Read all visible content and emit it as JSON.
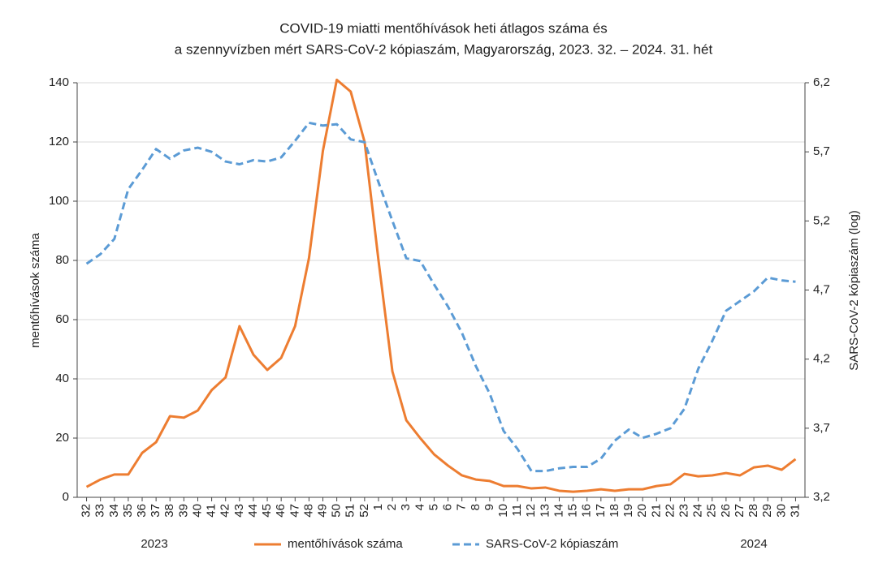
{
  "chart_data": {
    "type": "line",
    "title": [
      "COVID-19 miatti mentőhívások heti átlagos száma és",
      "a szennyvízben mért SARS-CoV-2 kópiaszám, Magyarország, 2023. 32. – 2024. 31. hét"
    ],
    "y_label": "mentőhívások száma",
    "y2_label": "SARS-CoV-2 kópiaszám (log)",
    "annotations": [
      "2023",
      "2024"
    ],
    "categories": [
      "32",
      "33",
      "34",
      "35",
      "36",
      "37",
      "38",
      "39",
      "40",
      "41",
      "42",
      "43",
      "44",
      "45",
      "46",
      "47",
      "48",
      "49",
      "50",
      "51",
      "52",
      "1",
      "2",
      "3",
      "4",
      "5",
      "6",
      "7",
      "8",
      "9",
      "10",
      "11",
      "12",
      "13",
      "14",
      "15",
      "16",
      "17",
      "18",
      "19",
      "20",
      "21",
      "22",
      "23",
      "24",
      "25",
      "26",
      "27",
      "28",
      "29",
      "30",
      "31"
    ],
    "series": [
      {
        "name": "mentőhívások száma",
        "color": "#ed7d31",
        "dash": false,
        "values": [
          3.5,
          6,
          7.7,
          7.7,
          15,
          18.6,
          27.4,
          26.9,
          29.3,
          36.2,
          40.5,
          57.8,
          48.2,
          43,
          47.1,
          57.8,
          80.8,
          117,
          141,
          137,
          120,
          80,
          42.5,
          26,
          20,
          14.5,
          10.7,
          7.4,
          6,
          5.5,
          3.8,
          3.8,
          3,
          3.3,
          2.2,
          1.9,
          2.2,
          2.7,
          2.2,
          2.7,
          2.7,
          3.8,
          4.4,
          7.9,
          7.1,
          7.4,
          8.2,
          7.4,
          10.1,
          10.7,
          9.3,
          12.9
        ]
      },
      {
        "name": "SARS-CoV-2 kópiaszám",
        "color": "#5b9bd5",
        "dash": true,
        "axis": "y2",
        "values": [
          4.89,
          4.96,
          5.07,
          5.43,
          5.57,
          5.72,
          5.65,
          5.71,
          5.73,
          5.7,
          5.63,
          5.61,
          5.64,
          5.63,
          5.66,
          5.78,
          5.91,
          5.89,
          5.9,
          5.79,
          5.77,
          5.48,
          5.2,
          4.93,
          4.91,
          4.74,
          4.58,
          4.39,
          4.15,
          3.95,
          3.68,
          3.55,
          3.39,
          3.39,
          3.41,
          3.42,
          3.42,
          3.48,
          3.61,
          3.69,
          3.63,
          3.66,
          3.7,
          3.84,
          4.13,
          4.33,
          4.55,
          4.62,
          4.69,
          4.79,
          4.77,
          4.76
        ]
      }
    ],
    "ylim": [
      0,
      140
    ],
    "yticks": [
      0,
      20,
      40,
      60,
      80,
      100,
      120,
      140
    ],
    "y2lim": [
      3.2,
      6.2
    ],
    "y2ticks": [
      {
        "value": 3.2,
        "label": "3,2"
      },
      {
        "value": 3.7,
        "label": "3,7"
      },
      {
        "value": 4.2,
        "label": "4,2"
      },
      {
        "value": 4.7,
        "label": "4,7"
      },
      {
        "value": 5.2,
        "label": "5,2"
      },
      {
        "value": 5.7,
        "label": "5,7"
      },
      {
        "value": 6.2,
        "label": "6,2"
      }
    ],
    "grid": true,
    "legend": "bottom"
  }
}
